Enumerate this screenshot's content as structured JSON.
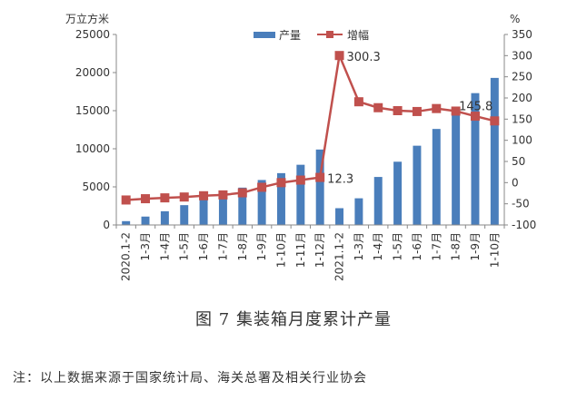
{
  "chart_data": {
    "type": "bar+line",
    "left_axis_unit": "万立方米",
    "right_axis_unit": "%",
    "left_ylim": [
      0,
      25000
    ],
    "left_ticks": [
      0,
      5000,
      10000,
      15000,
      20000,
      25000
    ],
    "right_ylim": [
      -100,
      350
    ],
    "right_ticks": [
      -100,
      -50,
      0,
      50,
      100,
      150,
      200,
      250,
      300,
      350
    ],
    "categories": [
      "2020.1-2",
      "1-3月",
      "1-4月",
      "1-5月",
      "1-6月",
      "1-7月",
      "1-8月",
      "1-9月",
      "1-10月",
      "1-11月",
      "1-12月",
      "2021.1-2",
      "1-3月",
      "1-4月",
      "1-5月",
      "1-6月",
      "1-7月",
      "1-8月",
      "1-9月",
      "1-10月"
    ],
    "series": [
      {
        "name": "产量",
        "type": "bar",
        "axis": "left",
        "color": "#4a7ebb",
        "values": [
          500,
          1100,
          1800,
          2600,
          3300,
          4000,
          4900,
          5900,
          6800,
          7900,
          9900,
          2200,
          3500,
          6300,
          8300,
          10400,
          12600,
          15000,
          17300,
          19300
        ]
      },
      {
        "name": "增幅",
        "type": "line",
        "axis": "right",
        "color": "#c0504d",
        "values": [
          -41,
          -38,
          -36,
          -34,
          -31,
          -29,
          -24,
          -11,
          0,
          6,
          12.3,
          300.3,
          191,
          177,
          170,
          168,
          175,
          169,
          157,
          145.8
        ]
      }
    ],
    "annotations": [
      {
        "series": "增幅",
        "index": 10,
        "text": "12.3"
      },
      {
        "series": "增幅",
        "index": 11,
        "text": "300.3"
      },
      {
        "series": "增幅",
        "index": 19,
        "text": "145.8"
      }
    ]
  },
  "caption": "图 7  集装箱月度累计产量",
  "note": "注：以上数据来源于国家统计局、海关总署及相关行业协会"
}
